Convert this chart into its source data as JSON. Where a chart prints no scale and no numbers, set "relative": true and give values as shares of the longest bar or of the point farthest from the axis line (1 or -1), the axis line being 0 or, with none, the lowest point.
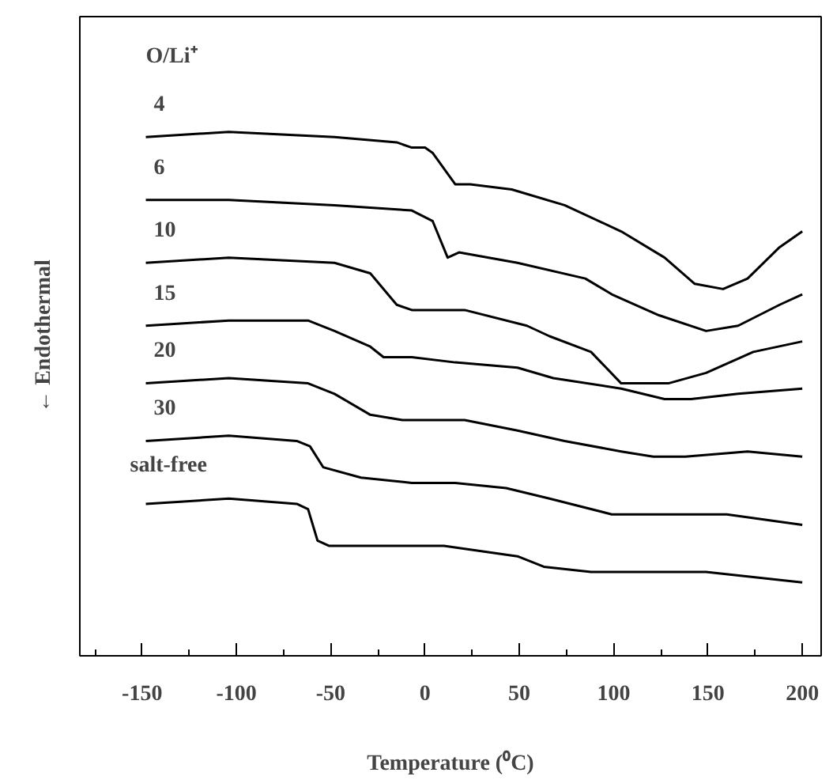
{
  "chart_data": {
    "type": "line",
    "relative": true,
    "xlabel": "Temperature (⁰C)",
    "ylabel": "← Endothermal",
    "legend_title": "O/Li⁺",
    "xlim": [
      -183,
      210
    ],
    "xticks": [
      {
        "value": -175,
        "label": null
      },
      -150,
      {
        "value": -125,
        "label": null
      },
      -100,
      {
        "value": -75,
        "label": null
      },
      -50,
      {
        "value": -25,
        "label": null
      },
      0,
      {
        "value": 25,
        "label": null
      },
      50,
      {
        "value": 75,
        "label": null
      },
      100,
      {
        "value": 125,
        "label": null
      },
      150,
      {
        "value": 175,
        "label": null
      },
      200
    ],
    "grid": false,
    "line_style": "solid",
    "series": [
      {
        "name": "4",
        "color": "#000000",
        "x": [
          -148,
          -104,
          -48,
          -15,
          -7,
          0,
          4,
          16,
          24,
          46,
          74,
          104,
          127,
          143,
          158,
          171,
          188,
          200
        ],
        "values": [
          0.99,
          1.0,
          0.99,
          0.98,
          0.97,
          0.97,
          0.96,
          0.9,
          0.9,
          0.89,
          0.86,
          0.81,
          0.76,
          0.71,
          0.7,
          0.72,
          0.78,
          0.81
        ]
      },
      {
        "name": "6",
        "color": "#000000",
        "x": [
          -148,
          -104,
          -48,
          -7,
          4,
          12,
          18,
          49,
          85,
          99,
          124,
          149,
          166,
          188,
          200
        ],
        "values": [
          0.87,
          0.87,
          0.86,
          0.85,
          0.83,
          0.76,
          0.77,
          0.75,
          0.72,
          0.69,
          0.65,
          0.62,
          0.63,
          0.67,
          0.69
        ]
      },
      {
        "name": "10",
        "color": "#000000",
        "x": [
          -148,
          -104,
          -48,
          -29,
          -15,
          -7,
          21,
          54,
          66,
          88,
          104,
          129,
          149,
          174,
          200
        ],
        "values": [
          0.75,
          0.76,
          0.75,
          0.73,
          0.67,
          0.66,
          0.66,
          0.63,
          0.61,
          0.58,
          0.52,
          0.52,
          0.54,
          0.58,
          0.6
        ]
      },
      {
        "name": "15",
        "color": "#000000",
        "x": [
          -148,
          -104,
          -62,
          -48,
          -29,
          -22,
          -7,
          16,
          49,
          68,
          104,
          127,
          141,
          166,
          200
        ],
        "values": [
          0.63,
          0.64,
          0.64,
          0.62,
          0.59,
          0.57,
          0.57,
          0.56,
          0.55,
          0.53,
          0.51,
          0.49,
          0.49,
          0.5,
          0.51
        ]
      },
      {
        "name": "20",
        "color": "#000000",
        "x": [
          -148,
          -104,
          -62,
          -48,
          -29,
          -12,
          21,
          49,
          74,
          104,
          121,
          138,
          171,
          200
        ],
        "values": [
          0.52,
          0.53,
          0.52,
          0.5,
          0.46,
          0.45,
          0.45,
          0.43,
          0.41,
          0.39,
          0.38,
          0.38,
          0.39,
          0.38
        ]
      },
      {
        "name": "30",
        "color": "#000000",
        "x": [
          -148,
          -104,
          -68,
          -61,
          -54,
          -34,
          -7,
          16,
          43,
          66,
          99,
          133,
          160,
          200
        ],
        "values": [
          0.41,
          0.42,
          0.41,
          0.4,
          0.36,
          0.34,
          0.33,
          0.33,
          0.32,
          0.3,
          0.27,
          0.27,
          0.27,
          0.25
        ]
      },
      {
        "name": "salt-free",
        "color": "#000000",
        "x": [
          -148,
          -104,
          -68,
          -62,
          -57,
          -51,
          -7,
          10,
          49,
          63,
          88,
          127,
          149,
          200
        ],
        "values": [
          0.29,
          0.3,
          0.29,
          0.28,
          0.22,
          0.21,
          0.21,
          0.21,
          0.19,
          0.17,
          0.16,
          0.16,
          0.16,
          0.14
        ]
      }
    ]
  }
}
